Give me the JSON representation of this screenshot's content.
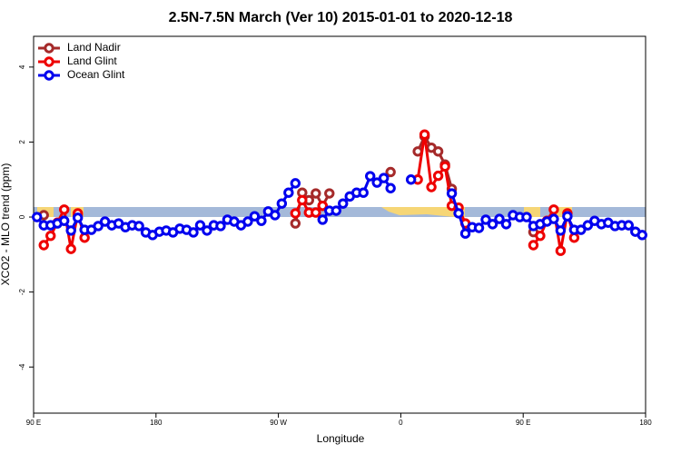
{
  "chart_data": {
    "type": "line",
    "title": "2.5N-7.5N March (Ver 10)   2015-01-01 to 2020-12-18",
    "x_label": "Longitude",
    "y_label": "XCO2 - MLO trend (ppm)",
    "x": [
      92.5,
      97.5,
      102.5,
      107.5,
      112.5,
      117.5,
      122.5,
      127.5,
      132.5,
      137.5,
      142.5,
      147.5,
      152.5,
      157.5,
      162.5,
      167.5,
      172.5,
      177.5,
      182.5,
      187.5,
      192.5,
      197.5,
      202.5,
      207.5,
      212.5,
      217.5,
      222.5,
      227.5,
      232.5,
      237.5,
      242.5,
      247.5,
      252.5,
      257.5,
      262.5,
      267.5,
      272.5,
      277.5,
      282.5,
      287.5,
      292.5,
      297.5,
      302.5,
      307.5,
      312.5,
      317.5,
      322.5,
      327.5,
      332.5,
      337.5,
      342.5,
      347.5,
      352.5,
      357.5,
      362.5,
      367.5,
      372.5,
      377.5,
      382.5,
      387.5,
      392.5,
      397.5,
      402.5,
      407.5,
      412.5,
      417.5,
      422.5,
      427.5,
      432.5,
      437.5,
      442.5,
      447.5,
      452.5,
      457.5,
      462.5,
      467.5,
      472.5,
      477.5,
      482.5,
      487.5,
      492.5,
      497.5,
      502.5,
      507.5,
      512.5,
      517.5,
      522.5,
      527.5,
      532.5,
      537.5
    ],
    "series": [
      {
        "name": "Land Nadir",
        "color": "#a52a2a",
        "values": [
          null,
          0.05,
          null,
          null,
          null,
          null,
          0.05,
          null,
          null,
          null,
          null,
          null,
          null,
          null,
          null,
          null,
          null,
          null,
          null,
          null,
          null,
          null,
          null,
          null,
          null,
          null,
          null,
          null,
          null,
          null,
          null,
          null,
          null,
          null,
          null,
          null,
          null,
          null,
          -0.17,
          0.65,
          0.45,
          0.63,
          0.3,
          0.63,
          null,
          null,
          null,
          null,
          null,
          null,
          null,
          null,
          1.2,
          null,
          null,
          null,
          1.75,
          2.15,
          1.85,
          1.75,
          1.4,
          0.75,
          null,
          null,
          null,
          null,
          null,
          null,
          null,
          null,
          null,
          null,
          null,
          -0.4,
          null,
          null,
          null,
          null,
          null,
          null,
          null,
          null,
          null,
          null,
          null,
          null,
          null,
          null,
          null,
          null
        ]
      },
      {
        "name": "Land Glint",
        "color": "#ee0000",
        "values": [
          null,
          -0.75,
          -0.5,
          -0.15,
          0.2,
          -0.85,
          0.1,
          -0.55,
          null,
          null,
          null,
          null,
          null,
          null,
          null,
          null,
          null,
          null,
          null,
          null,
          null,
          null,
          null,
          null,
          null,
          null,
          null,
          null,
          null,
          null,
          null,
          null,
          null,
          null,
          null,
          null,
          null,
          null,
          0.1,
          0.45,
          0.12,
          0.12,
          0.3,
          null,
          null,
          null,
          null,
          null,
          null,
          null,
          null,
          null,
          null,
          null,
          null,
          null,
          1.0,
          2.2,
          0.8,
          1.1,
          1.35,
          0.3,
          0.25,
          -0.17,
          null,
          null,
          null,
          null,
          null,
          null,
          null,
          null,
          null,
          -0.75,
          -0.5,
          -0.1,
          0.2,
          -0.9,
          0.1,
          -0.55,
          null,
          null,
          null,
          null,
          null,
          null,
          null,
          null,
          null,
          null
        ]
      },
      {
        "name": "Ocean Glint",
        "color": "#0000ee",
        "values": [
          0,
          -0.22,
          -0.22,
          -0.17,
          -0.1,
          -0.36,
          -0.02,
          -0.34,
          -0.34,
          -0.24,
          -0.12,
          -0.22,
          -0.17,
          -0.27,
          -0.22,
          -0.24,
          -0.41,
          -0.48,
          -0.39,
          -0.36,
          -0.41,
          -0.31,
          -0.34,
          -0.41,
          -0.22,
          -0.36,
          -0.22,
          -0.24,
          -0.07,
          -0.12,
          -0.22,
          -0.12,
          0.02,
          -0.1,
          0.15,
          0.05,
          0.36,
          0.65,
          0.9,
          null,
          null,
          null,
          -0.07,
          0.17,
          0.17,
          0.36,
          0.55,
          0.65,
          0.65,
          1.09,
          0.92,
          1.04,
          0.77,
          null,
          null,
          1.0,
          null,
          null,
          null,
          null,
          null,
          0.63,
          0.1,
          -0.44,
          -0.27,
          -0.29,
          -0.07,
          -0.19,
          -0.05,
          -0.19,
          0.05,
          0,
          0,
          -0.24,
          -0.19,
          -0.12,
          -0.05,
          -0.36,
          0.02,
          -0.34,
          -0.34,
          -0.22,
          -0.1,
          -0.19,
          -0.15,
          -0.24,
          -0.22,
          -0.22,
          -0.39,
          -0.48
        ]
      }
    ],
    "xlim": [
      90,
      540
    ],
    "xticks": [
      {
        "value": 90,
        "label": "90 E"
      },
      180,
      {
        "value": 270,
        "label": "90 W"
      },
      {
        "value": 360,
        "label": "0"
      },
      {
        "value": 450,
        "label": "90 E"
      },
      {
        "value": 540,
        "label": "180"
      }
    ],
    "ylim": [
      -5.23,
      4.82
    ],
    "yticks": [
      -4,
      -2,
      0,
      2,
      4
    ],
    "legend": "top-left"
  }
}
